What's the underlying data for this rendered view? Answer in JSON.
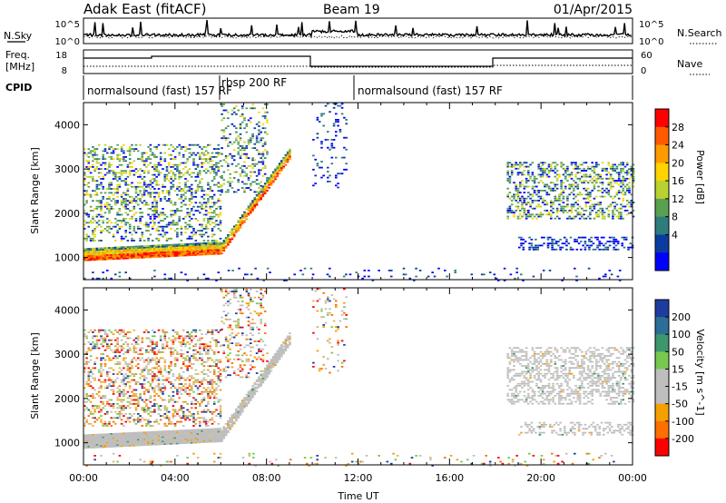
{
  "header": {
    "station": "Adak East (fitACF)",
    "beam": "Beam 19",
    "date": "01/Apr/2015"
  },
  "strip_labels": {
    "nsky": "N.Sky",
    "nsearch": "N.Search",
    "freq_line1": "Freq.",
    "freq_line2": "[MHz]",
    "nave": "Nave",
    "cpid": "CPID",
    "nsky_ticks": [
      "10^5",
      "10^0"
    ],
    "freq_ticks": [
      "18",
      "8"
    ],
    "nave_ticks": [
      "60",
      "0"
    ]
  },
  "cpid_segments": [
    {
      "label": "normalsound (fast) 157 RF",
      "start_hour": 0,
      "end_hour": 6
    },
    {
      "label": "rbsp 200 RF",
      "start_hour": 6,
      "end_hour": 12
    },
    {
      "label": "normalsound (fast) 157 RF",
      "start_hour": 12,
      "end_hour": 24
    }
  ],
  "colorbars": {
    "power": {
      "label": "Power [dB]",
      "ticks": [
        "28",
        "24",
        "20",
        "16",
        "12",
        "8",
        "4"
      ],
      "colors": [
        "#ff0000",
        "#ff5a00",
        "#ff9a00",
        "#ffd200",
        "#b9d232",
        "#5aa050",
        "#2d7d7d",
        "#0a3ca0",
        "#0000ff"
      ]
    },
    "velocity": {
      "label": "Velocity [m s^-1]",
      "ticks": [
        "200",
        "100",
        "50",
        "15",
        "-15",
        "-50",
        "-100",
        "-200"
      ],
      "colors": [
        "#1e3ca0",
        "#2d6e96",
        "#3c966e",
        "#78c850",
        "#bebebe",
        "#bebebe",
        "#f5a000",
        "#ff6e00",
        "#ff0000"
      ]
    }
  },
  "chart_data": [
    {
      "type": "heatmap",
      "name": "power",
      "ylabel": "Slant Range [km]",
      "ylim": [
        500,
        4500
      ],
      "yticks": [
        "1000",
        "2000",
        "3000",
        "4000"
      ],
      "xlim": [
        0,
        24
      ],
      "scatter_regions": [
        {
          "kind": "band",
          "t0": 0,
          "t1": 6,
          "r_start": 1000,
          "r_end": 1150,
          "h": 230,
          "density": 1.0,
          "color": "power_ramp"
        },
        {
          "kind": "band",
          "t0": 6,
          "t1": 9,
          "r_start": 1150,
          "r_end": 3300,
          "h": 200,
          "density": 0.9,
          "color": "power_ramp"
        },
        {
          "kind": "fill",
          "t0": 0,
          "t1": 6,
          "r0": 1400,
          "r1": 3600,
          "density": 0.35,
          "color": "teal_mix"
        },
        {
          "kind": "fill",
          "t0": 6,
          "t1": 8,
          "r0": 2500,
          "r1": 4500,
          "density": 0.25,
          "color": "teal_mix"
        },
        {
          "kind": "fill",
          "t0": 10,
          "t1": 11.5,
          "r0": 2600,
          "r1": 4500,
          "density": 0.12,
          "color": "blue_mix"
        },
        {
          "kind": "fill",
          "t0": 18.5,
          "t1": 24,
          "r0": 1900,
          "r1": 3200,
          "density": 0.4,
          "color": "teal_mix"
        },
        {
          "kind": "fill",
          "t0": 19,
          "t1": 24,
          "r0": 1200,
          "r1": 1500,
          "density": 0.35,
          "color": "blue_mix"
        },
        {
          "kind": "fill",
          "t0": 0,
          "t1": 24,
          "r0": 500,
          "r1": 800,
          "density": 0.06,
          "color": "blue_mix"
        }
      ]
    },
    {
      "type": "heatmap",
      "name": "velocity",
      "ylabel": "Slant Range [km]",
      "xlabel": "Time UT",
      "ylim": [
        500,
        4500
      ],
      "yticks": [
        "1000",
        "2000",
        "3000",
        "4000"
      ],
      "xlim": [
        0,
        24
      ],
      "xticks": [
        "00:00",
        "04:00",
        "08:00",
        "12:00",
        "16:00",
        "20:00",
        "00:00"
      ],
      "scatter_regions": [
        {
          "kind": "band",
          "t0": 0,
          "t1": 6,
          "r_start": 950,
          "r_end": 1100,
          "h": 250,
          "density": 1.0,
          "color": "gray"
        },
        {
          "kind": "band",
          "t0": 6,
          "t1": 9,
          "r_start": 1100,
          "r_end": 3300,
          "h": 220,
          "density": 0.9,
          "color": "gray"
        },
        {
          "kind": "fill",
          "t0": 0,
          "t1": 6,
          "r0": 1400,
          "r1": 3600,
          "density": 0.35,
          "color": "vel_mix"
        },
        {
          "kind": "fill",
          "t0": 6,
          "t1": 8,
          "r0": 2500,
          "r1": 4500,
          "density": 0.22,
          "color": "vel_mix"
        },
        {
          "kind": "fill",
          "t0": 10,
          "t1": 11.5,
          "r0": 2600,
          "r1": 4500,
          "density": 0.12,
          "color": "vel_mix"
        },
        {
          "kind": "fill",
          "t0": 18.5,
          "t1": 24,
          "r0": 1900,
          "r1": 3200,
          "density": 0.45,
          "color": "gray"
        },
        {
          "kind": "fill",
          "t0": 19,
          "t1": 24,
          "r0": 1200,
          "r1": 1500,
          "density": 0.35,
          "color": "gray"
        },
        {
          "kind": "fill",
          "t0": 0,
          "t1": 24,
          "r0": 500,
          "r1": 800,
          "density": 0.06,
          "color": "vel_mix"
        }
      ]
    }
  ]
}
